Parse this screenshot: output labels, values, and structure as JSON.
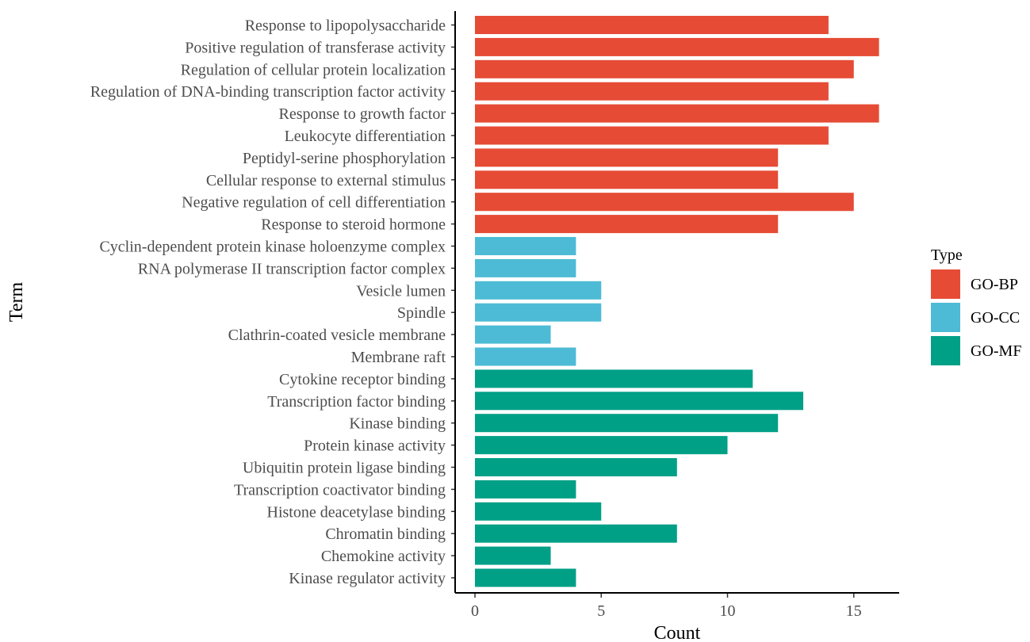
{
  "chart_data": {
    "type": "bar",
    "orientation": "horizontal",
    "xlabel": "Count",
    "ylabel": "Term",
    "xlim": [
      -0.8,
      16.8
    ],
    "xticks": [
      0,
      5,
      10,
      15
    ],
    "grid": false,
    "legend_title": "Type",
    "legend_position": "right",
    "legend": [
      {
        "name": "GO-BP",
        "color": "#E64B35"
      },
      {
        "name": "GO-CC",
        "color": "#4DBBD5"
      },
      {
        "name": "GO-MF",
        "color": "#00A087"
      }
    ],
    "categories": [
      "Response to lipopolysaccharide",
      "Positive regulation of transferase activity",
      "Regulation of cellular protein localization",
      "Regulation of DNA-binding transcription factor activity",
      "Response to growth factor",
      "Leukocyte differentiation",
      "Peptidyl-serine phosphorylation",
      "Cellular response to external stimulus",
      "Negative regulation of cell differentiation",
      "Response to steroid hormone",
      "Cyclin-dependent protein kinase holoenzyme complex",
      "RNA polymerase II transcription factor complex",
      "Vesicle lumen",
      "Spindle",
      "Clathrin-coated vesicle membrane",
      "Membrane raft",
      "Cytokine receptor binding",
      "Transcription factor binding",
      "Kinase binding",
      "Protein kinase activity",
      "Ubiquitin protein ligase binding",
      "Transcription coactivator binding",
      "Histone deacetylase binding",
      "Chromatin binding",
      "Chemokine activity",
      "Kinase regulator activity"
    ],
    "values": [
      14,
      16,
      15,
      14,
      16,
      14,
      12,
      12,
      15,
      12,
      4,
      4,
      5,
      5,
      3,
      4,
      11,
      13,
      12,
      10,
      8,
      4,
      5,
      8,
      3,
      4
    ],
    "types": [
      "GO-BP",
      "GO-BP",
      "GO-BP",
      "GO-BP",
      "GO-BP",
      "GO-BP",
      "GO-BP",
      "GO-BP",
      "GO-BP",
      "GO-BP",
      "GO-CC",
      "GO-CC",
      "GO-CC",
      "GO-CC",
      "GO-CC",
      "GO-CC",
      "GO-MF",
      "GO-MF",
      "GO-MF",
      "GO-MF",
      "GO-MF",
      "GO-MF",
      "GO-MF",
      "GO-MF",
      "GO-MF",
      "GO-MF"
    ]
  }
}
